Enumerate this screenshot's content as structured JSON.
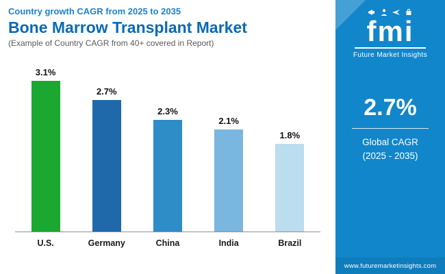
{
  "header": {
    "eyebrow": "Country growth CAGR from 2025 to 2035",
    "title": "Bone Marrow Transplant Market",
    "subtitle": "(Example of Country CAGR from 40+ covered in Report)"
  },
  "chart_data": {
    "type": "bar",
    "title": "Bone Marrow Transplant Market - Country growth CAGR from 2025 to 2035",
    "categories": [
      "U.S.",
      "Germany",
      "China",
      "India",
      "Brazil"
    ],
    "values": [
      3.1,
      2.7,
      2.3,
      2.1,
      1.8
    ],
    "value_labels": [
      "3.1%",
      "2.7%",
      "2.3%",
      "2.1%",
      "1.8%"
    ],
    "bar_colors": [
      "#1aa830",
      "#1f69ab",
      "#2e8cc7",
      "#7ab7e0",
      "#bcdcf0"
    ],
    "xlabel": "",
    "ylabel": "",
    "ylim": [
      0,
      3.5
    ],
    "grid": false,
    "legend": "none"
  },
  "sidebar": {
    "bg_color": "#1186ca",
    "logo_text": "fmi",
    "logo_icons": [
      "megaphone-icon",
      "person-icon",
      "plane-icon",
      "bag-icon"
    ],
    "logo_subtext": "Future Market Insights",
    "stat_value": "2.7%",
    "stat_label_line1": "Global CAGR",
    "stat_label_line2": "(2025 - 2035)",
    "website": "www.futuremarketinsights.com"
  }
}
